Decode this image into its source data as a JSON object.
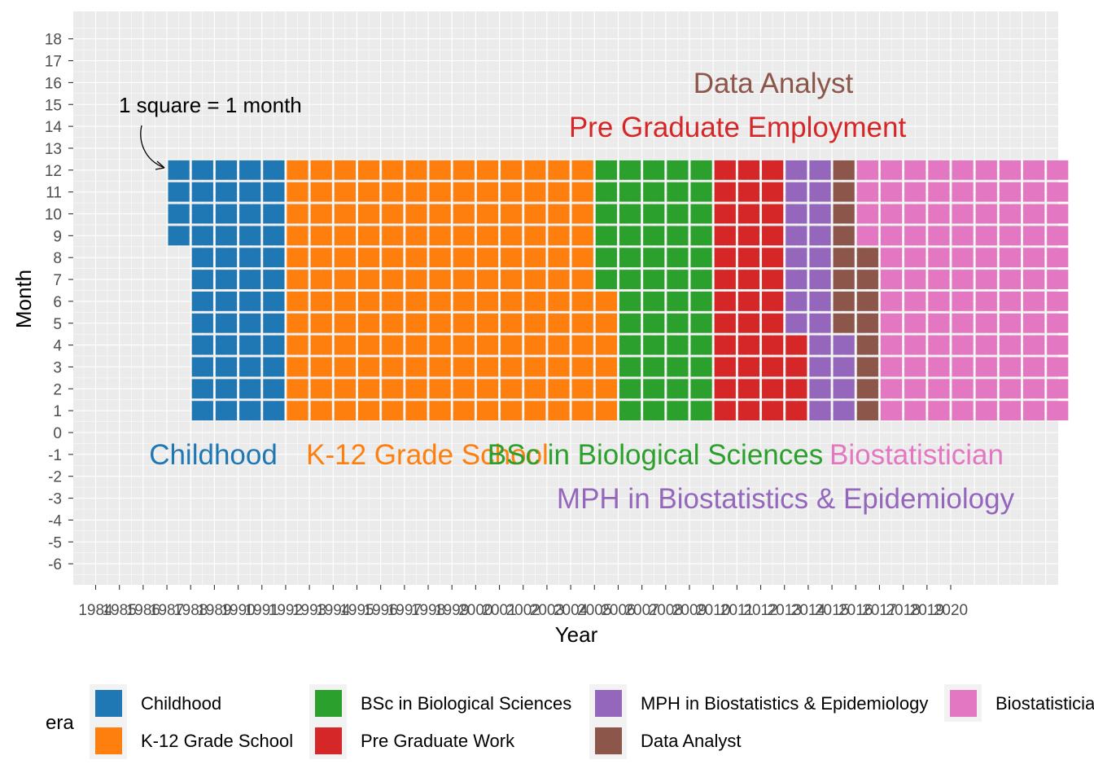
{
  "chart_data": {
    "type": "heatmap",
    "subtype": "waffle",
    "title": "",
    "xlabel": "Year",
    "ylabel": "Month",
    "annotation": "1 square = 1 month",
    "x_ticks": [
      "1984",
      "1985",
      "1986",
      "1987",
      "1988",
      "1989",
      "1990",
      "1991",
      "1992",
      "1993",
      "1994",
      "1995",
      "1996",
      "1997",
      "1998",
      "1999",
      "2000",
      "2001",
      "2002",
      "2003",
      "2004",
      "2005",
      "2006",
      "2007",
      "2008",
      "2009",
      "2010",
      "2011",
      "2012",
      "2013",
      "2014",
      "2015",
      "2016",
      "2017",
      "2018",
      "2019",
      "2020"
    ],
    "y_ticks": [
      "18",
      "17",
      "16",
      "15",
      "14",
      "13",
      "12",
      "11",
      "10",
      "9",
      "8",
      "7",
      "6",
      "5",
      "4",
      "3",
      "2",
      "1",
      "0",
      "-1",
      "-2",
      "-3",
      "-4",
      "-5",
      "-6"
    ],
    "ylim": [
      -6,
      18
    ],
    "grid": true,
    "legend": {
      "title": "era",
      "position": "bottom",
      "entries": [
        {
          "name": "Childhood",
          "color": "#1F77B4"
        },
        {
          "name": "K-12 Grade School",
          "color": "#FF7F0E"
        },
        {
          "name": "BSc in Biological Sciences",
          "color": "#2CA02C"
        },
        {
          "name": "Pre Graduate Work",
          "color": "#D62728"
        },
        {
          "name": "MPH in Biostatistics & Epidemiology",
          "color": "#9467BD"
        },
        {
          "name": "Data Analyst",
          "color": "#8C564B"
        },
        {
          "name": "Biostatistician",
          "color": "#E377C2"
        }
      ]
    },
    "era_labels": [
      {
        "text": "Childhood",
        "color": "#1F77B4"
      },
      {
        "text": "K-12 Grade School",
        "color": "#FF7F0E"
      },
      {
        "text": "BSc in Biological Sciences",
        "color": "#2CA02C"
      },
      {
        "text": "Biostatistician",
        "color": "#E377C2"
      },
      {
        "text": "MPH in Biostatistics & Epidemiology",
        "color": "#9467BD"
      },
      {
        "text": "Data Analyst",
        "color": "#8C564B"
      },
      {
        "text": "Pre Graduate Employment",
        "color": "#D62728"
      }
    ],
    "series": [
      {
        "name": "Childhood",
        "months": 52
      },
      {
        "name": "K-12 Grade School",
        "months": 162
      },
      {
        "name": "BSc in Biological Sciences",
        "months": 54
      },
      {
        "name": "Pre Graduate Work",
        "months": 40
      },
      {
        "name": "MPH in Biostatistics & Epidemiology",
        "months": 24
      },
      {
        "name": "Data Analyst",
        "months": 16
      },
      {
        "name": "Biostatistician",
        "months": 100
      }
    ],
    "start_month": 9
  }
}
